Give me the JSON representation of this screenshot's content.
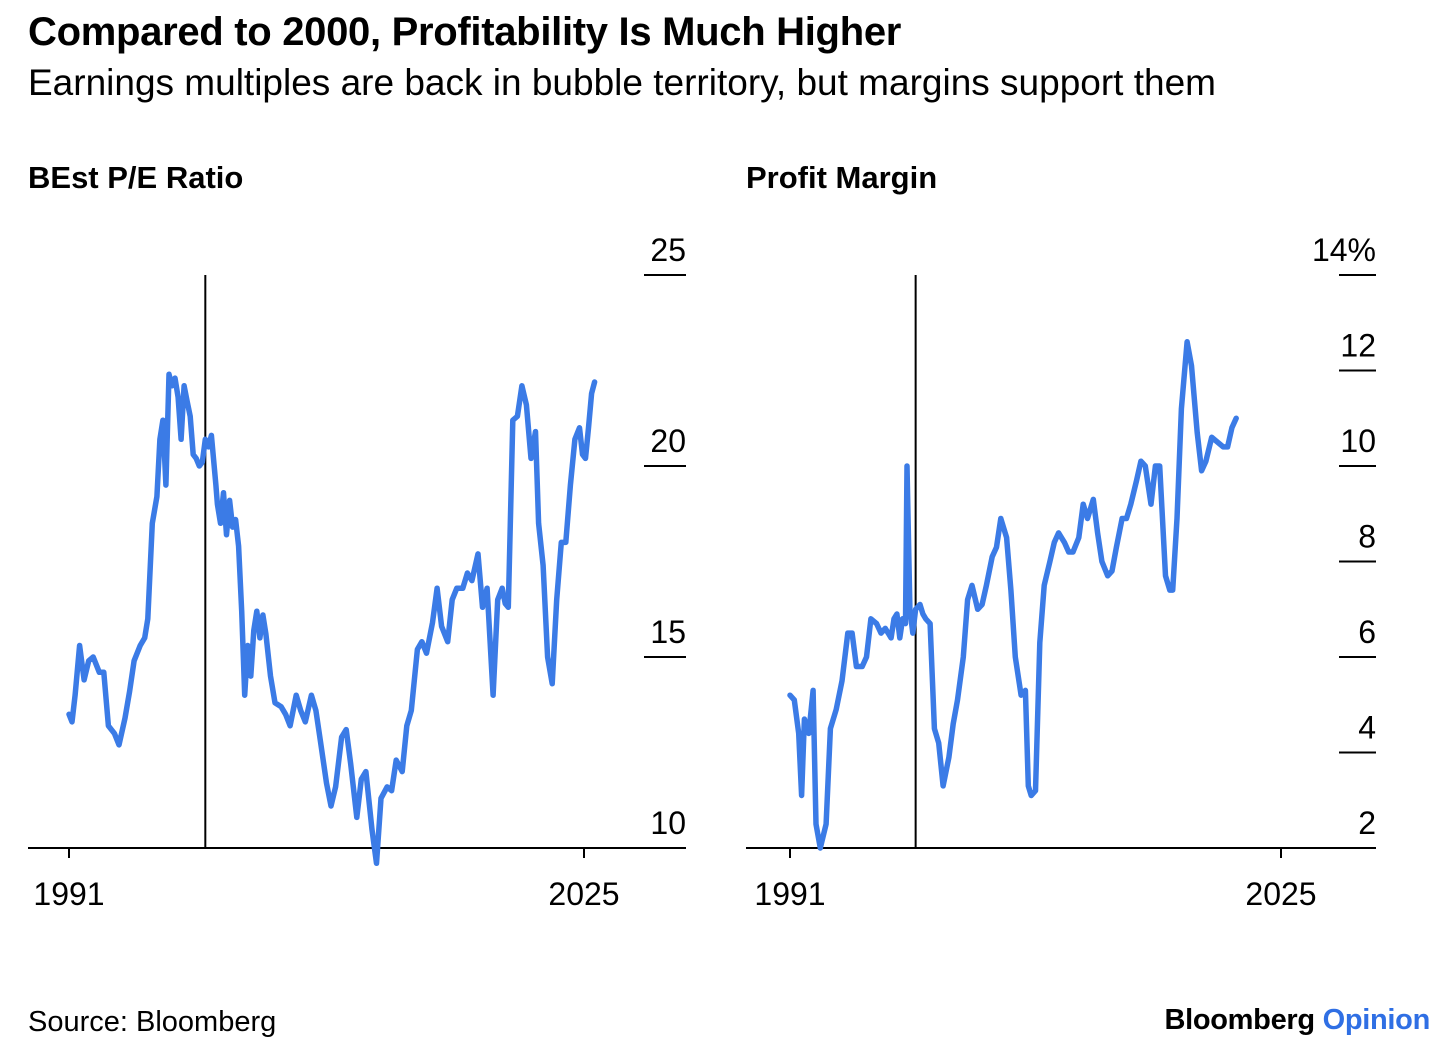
{
  "title": "Compared to 2000, Profitability Is Much Higher",
  "subtitle": "Earnings multiples are back in bubble territory, but margins support them",
  "source": "Source: Bloomberg",
  "logo": {
    "brand": "Bloomberg",
    "suffix": "Opinion"
  },
  "colors": {
    "line": "#3b7be6",
    "axis": "#000000",
    "opinion": "#2f6fe4"
  },
  "chart_data": [
    {
      "type": "line",
      "title": "BEst P/E Ratio",
      "x_ticks": [
        "1991",
        "2025"
      ],
      "y_ticks": [
        "10",
        "15",
        "20",
        "25"
      ],
      "y_axis_side": "right",
      "ylim": [
        9.5,
        25
      ],
      "xlim": [
        1988.2,
        2032
      ],
      "marker_line_x": 2000,
      "grid": false,
      "series": [
        {
          "values": [
            [
              1991.0,
              13.5
            ],
            [
              1991.2,
              13.3
            ],
            [
              1991.4,
              14.0
            ],
            [
              1991.7,
              15.3
            ],
            [
              1992.0,
              14.4
            ],
            [
              1992.3,
              14.9
            ],
            [
              1992.6,
              15.0
            ],
            [
              1993.0,
              14.6
            ],
            [
              1993.3,
              14.6
            ],
            [
              1993.6,
              13.2
            ],
            [
              1994.0,
              13.0
            ],
            [
              1994.3,
              12.7
            ],
            [
              1994.7,
              13.4
            ],
            [
              1995.0,
              14.1
            ],
            [
              1995.3,
              14.9
            ],
            [
              1995.7,
              15.3
            ],
            [
              1996.0,
              15.5
            ],
            [
              1996.2,
              16.0
            ],
            [
              1996.5,
              18.5
            ],
            [
              1996.8,
              19.2
            ],
            [
              1997.0,
              20.7
            ],
            [
              1997.2,
              21.2
            ],
            [
              1997.4,
              19.5
            ],
            [
              1997.6,
              22.4
            ],
            [
              1997.8,
              22.1
            ],
            [
              1998.0,
              22.3
            ],
            [
              1998.2,
              21.8
            ],
            [
              1998.4,
              20.7
            ],
            [
              1998.6,
              22.1
            ],
            [
              1998.8,
              21.7
            ],
            [
              1999.0,
              21.3
            ],
            [
              1999.2,
              20.3
            ],
            [
              1999.4,
              20.2
            ],
            [
              1999.6,
              20.0
            ],
            [
              1999.8,
              20.1
            ],
            [
              2000.0,
              20.7
            ],
            [
              2000.2,
              20.5
            ],
            [
              2000.4,
              20.8
            ],
            [
              2000.7,
              19.5
            ],
            [
              2000.8,
              19.0
            ],
            [
              2001.0,
              18.5
            ],
            [
              2001.2,
              19.3
            ],
            [
              2001.4,
              18.2
            ],
            [
              2001.6,
              19.1
            ],
            [
              2001.8,
              18.4
            ],
            [
              2002.0,
              18.6
            ],
            [
              2002.2,
              17.9
            ],
            [
              2002.4,
              16.2
            ],
            [
              2002.6,
              14.0
            ],
            [
              2002.8,
              15.3
            ],
            [
              2003.0,
              14.5
            ],
            [
              2003.2,
              15.7
            ],
            [
              2003.4,
              16.2
            ],
            [
              2003.6,
              15.5
            ],
            [
              2003.8,
              16.1
            ],
            [
              2004.0,
              15.6
            ],
            [
              2004.3,
              14.5
            ],
            [
              2004.6,
              13.8
            ],
            [
              2005.0,
              13.7
            ],
            [
              2005.3,
              13.5
            ],
            [
              2005.6,
              13.2
            ],
            [
              2006.0,
              14.0
            ],
            [
              2006.3,
              13.6
            ],
            [
              2006.6,
              13.3
            ],
            [
              2007.0,
              14.0
            ],
            [
              2007.3,
              13.6
            ],
            [
              2007.6,
              12.8
            ],
            [
              2008.0,
              11.7
            ],
            [
              2008.3,
              11.1
            ],
            [
              2008.6,
              11.6
            ],
            [
              2009.0,
              12.9
            ],
            [
              2009.3,
              13.1
            ],
            [
              2009.6,
              12.2
            ],
            [
              2010.0,
              10.8
            ],
            [
              2010.3,
              11.8
            ],
            [
              2010.6,
              12.0
            ],
            [
              2011.0,
              10.5
            ],
            [
              2011.3,
              9.6
            ],
            [
              2011.6,
              11.3
            ],
            [
              2012.0,
              11.6
            ],
            [
              2012.3,
              11.5
            ],
            [
              2012.6,
              12.3
            ],
            [
              2013.0,
              12.0
            ],
            [
              2013.3,
              13.2
            ],
            [
              2013.6,
              13.6
            ],
            [
              2014.0,
              15.2
            ],
            [
              2014.3,
              15.4
            ],
            [
              2014.6,
              15.1
            ],
            [
              2015.0,
              15.9
            ],
            [
              2015.3,
              16.8
            ],
            [
              2015.6,
              15.8
            ],
            [
              2016.0,
              15.4
            ],
            [
              2016.3,
              16.5
            ],
            [
              2016.6,
              16.8
            ],
            [
              2017.0,
              16.8
            ],
            [
              2017.3,
              17.2
            ],
            [
              2017.6,
              17.0
            ],
            [
              2018.0,
              17.7
            ],
            [
              2018.3,
              16.3
            ],
            [
              2018.6,
              16.8
            ],
            [
              2019.0,
              14.0
            ],
            [
              2019.3,
              16.5
            ],
            [
              2019.6,
              16.8
            ],
            [
              2019.8,
              16.4
            ],
            [
              2020.0,
              16.3
            ],
            [
              2020.3,
              21.2
            ],
            [
              2020.6,
              21.3
            ],
            [
              2020.9,
              22.1
            ],
            [
              2021.2,
              21.6
            ],
            [
              2021.5,
              20.2
            ],
            [
              2021.8,
              20.9
            ],
            [
              2022.0,
              18.5
            ],
            [
              2022.3,
              17.4
            ],
            [
              2022.6,
              15.0
            ],
            [
              2022.9,
              14.3
            ],
            [
              2023.2,
              16.5
            ],
            [
              2023.5,
              18.0
            ],
            [
              2023.8,
              18.0
            ],
            [
              2024.1,
              19.5
            ],
            [
              2024.4,
              20.7
            ],
            [
              2024.7,
              21.0
            ],
            [
              2024.9,
              20.3
            ],
            [
              2025.1,
              20.2
            ],
            [
              2025.3,
              21.0
            ],
            [
              2025.5,
              21.9
            ],
            [
              2025.7,
              22.2
            ]
          ]
        }
      ]
    },
    {
      "type": "line",
      "title": "Profit Margin",
      "x_ticks": [
        "1991",
        "2025"
      ],
      "y_ticks": [
        "2",
        "4",
        "6",
        "8",
        "10",
        "12",
        "14%"
      ],
      "y_axis_side": "right",
      "ylim": [
        2,
        14
      ],
      "xlim": [
        1988.8,
        2031.3
      ],
      "marker_line_x": 1999.7,
      "grid": false,
      "series": [
        {
          "values": [
            [
              1991.0,
              5.2
            ],
            [
              1991.3,
              5.1
            ],
            [
              1991.6,
              4.4
            ],
            [
              1991.8,
              3.1
            ],
            [
              1992.0,
              4.7
            ],
            [
              1992.3,
              4.4
            ],
            [
              1992.6,
              5.3
            ],
            [
              1992.8,
              2.5
            ],
            [
              1993.1,
              2.0
            ],
            [
              1993.5,
              2.5
            ],
            [
              1993.8,
              4.5
            ],
            [
              1994.2,
              4.9
            ],
            [
              1994.6,
              5.5
            ],
            [
              1995.0,
              6.5
            ],
            [
              1995.3,
              6.5
            ],
            [
              1995.6,
              5.8
            ],
            [
              1996.0,
              5.8
            ],
            [
              1996.3,
              6.0
            ],
            [
              1996.6,
              6.8
            ],
            [
              1997.0,
              6.7
            ],
            [
              1997.3,
              6.5
            ],
            [
              1997.6,
              6.6
            ],
            [
              1998.0,
              6.4
            ],
            [
              1998.2,
              6.8
            ],
            [
              1998.4,
              6.9
            ],
            [
              1998.6,
              6.4
            ],
            [
              1998.8,
              6.8
            ],
            [
              1999.0,
              6.7
            ],
            [
              1999.1,
              10.0
            ],
            [
              1999.3,
              7.0
            ],
            [
              1999.5,
              6.5
            ],
            [
              1999.7,
              7.0
            ],
            [
              2000.0,
              7.1
            ],
            [
              2000.2,
              6.9
            ],
            [
              2000.4,
              6.8
            ],
            [
              2000.7,
              6.7
            ],
            [
              2001.0,
              4.5
            ],
            [
              2001.3,
              4.2
            ],
            [
              2001.6,
              3.3
            ],
            [
              2002.0,
              3.9
            ],
            [
              2002.3,
              4.6
            ],
            [
              2002.6,
              5.1
            ],
            [
              2003.0,
              6.0
            ],
            [
              2003.3,
              7.2
            ],
            [
              2003.6,
              7.5
            ],
            [
              2004.0,
              7.0
            ],
            [
              2004.3,
              7.1
            ],
            [
              2004.6,
              7.5
            ],
            [
              2005.0,
              8.1
            ],
            [
              2005.3,
              8.3
            ],
            [
              2005.6,
              8.9
            ],
            [
              2006.0,
              8.5
            ],
            [
              2006.3,
              7.4
            ],
            [
              2006.6,
              6.0
            ],
            [
              2007.0,
              5.2
            ],
            [
              2007.3,
              5.3
            ],
            [
              2007.5,
              3.3
            ],
            [
              2007.7,
              3.1
            ],
            [
              2008.0,
              3.2
            ],
            [
              2008.3,
              6.3
            ],
            [
              2008.6,
              7.5
            ],
            [
              2009.0,
              8.0
            ],
            [
              2009.3,
              8.4
            ],
            [
              2009.6,
              8.6
            ],
            [
              2010.0,
              8.4
            ],
            [
              2010.3,
              8.2
            ],
            [
              2010.6,
              8.2
            ],
            [
              2011.0,
              8.5
            ],
            [
              2011.3,
              9.2
            ],
            [
              2011.6,
              8.9
            ],
            [
              2012.0,
              9.3
            ],
            [
              2012.3,
              8.6
            ],
            [
              2012.6,
              8.0
            ],
            [
              2013.0,
              7.7
            ],
            [
              2013.3,
              7.8
            ],
            [
              2013.6,
              8.3
            ],
            [
              2014.0,
              8.9
            ],
            [
              2014.3,
              8.9
            ],
            [
              2014.6,
              9.2
            ],
            [
              2015.0,
              9.7
            ],
            [
              2015.3,
              10.1
            ],
            [
              2015.6,
              10.0
            ],
            [
              2016.0,
              9.2
            ],
            [
              2016.3,
              10.0
            ],
            [
              2016.6,
              10.0
            ],
            [
              2017.0,
              7.7
            ],
            [
              2017.3,
              7.4
            ],
            [
              2017.5,
              7.4
            ],
            [
              2017.8,
              8.9
            ],
            [
              2018.1,
              11.2
            ],
            [
              2018.5,
              12.6
            ],
            [
              2018.8,
              12.1
            ],
            [
              2019.2,
              10.7
            ],
            [
              2019.5,
              9.9
            ],
            [
              2019.8,
              10.1
            ],
            [
              2020.2,
              10.6
            ],
            [
              2020.6,
              10.5
            ],
            [
              2021.0,
              10.4
            ],
            [
              2021.3,
              10.4
            ],
            [
              2021.6,
              10.8
            ],
            [
              2021.9,
              11.0
            ]
          ]
        }
      ]
    }
  ]
}
